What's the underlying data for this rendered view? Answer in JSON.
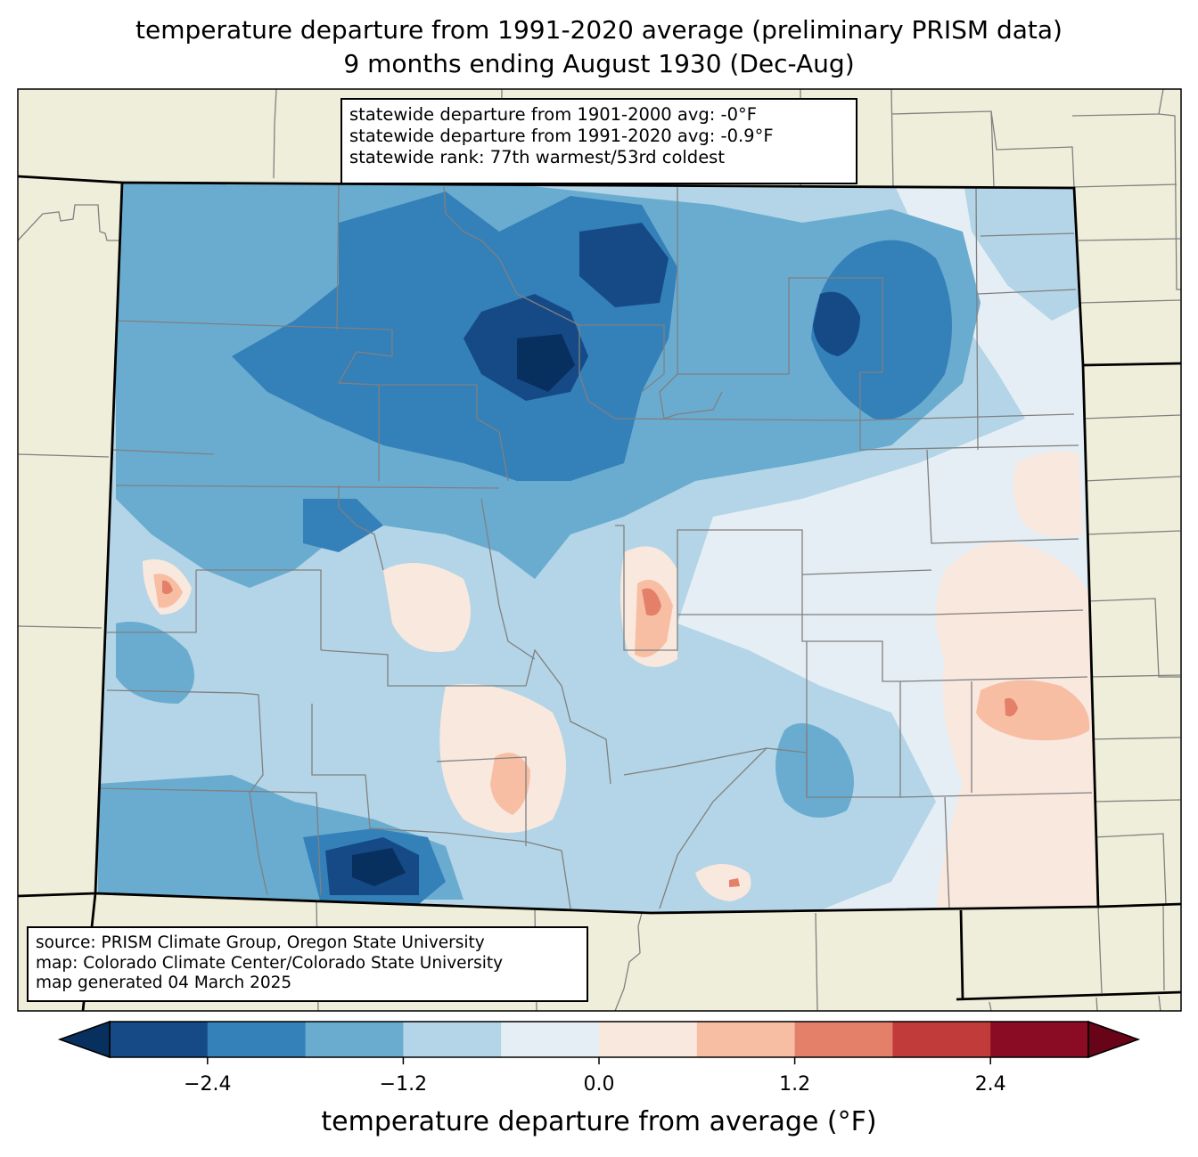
{
  "title": {
    "line1": "temperature departure from 1991-2020 average (preliminary PRISM data)",
    "line2": "9 months ending August 1930 (Dec-Aug)"
  },
  "stats_box": {
    "line1": "statewide departure from 1901-2000 avg: -0°F",
    "line2": "statewide departure from 1991-2020 avg: -0.9°F",
    "line3": "statewide rank: 77th warmest/53rd coldest"
  },
  "credit_box": {
    "line1": "source: PRISM Climate Group, Oregon State University",
    "line2": "map: Colorado Climate Center/Colorado State University",
    "line3": "map generated 04 March 2025"
  },
  "colorbar": {
    "label": "temperature departure from average (°F)",
    "levels": [
      -3.0,
      -2.4,
      -1.8,
      -1.2,
      -0.6,
      0.0,
      0.6,
      1.2,
      1.8,
      2.4,
      3.0
    ],
    "colors": [
      "#154a86",
      "#3480b9",
      "#6aacd0",
      "#b3d5e7",
      "#e5eef4",
      "#f9e8de",
      "#f8bea4",
      "#e4806a",
      "#c23b3b",
      "#8a0c24"
    ],
    "extend_min_color": "#08305e",
    "extend_max_color": "#680418",
    "ticks": [
      {
        "value": -2.4,
        "label": "−2.4"
      },
      {
        "value": -1.2,
        "label": "−1.2"
      },
      {
        "value": 0.0,
        "label": "0.0"
      },
      {
        "value": 1.2,
        "label": "1.2"
      },
      {
        "value": 2.4,
        "label": "2.4"
      }
    ]
  },
  "map_colors": {
    "land": "#efeedb",
    "county_line": "#808080",
    "state_line": "#000000"
  }
}
